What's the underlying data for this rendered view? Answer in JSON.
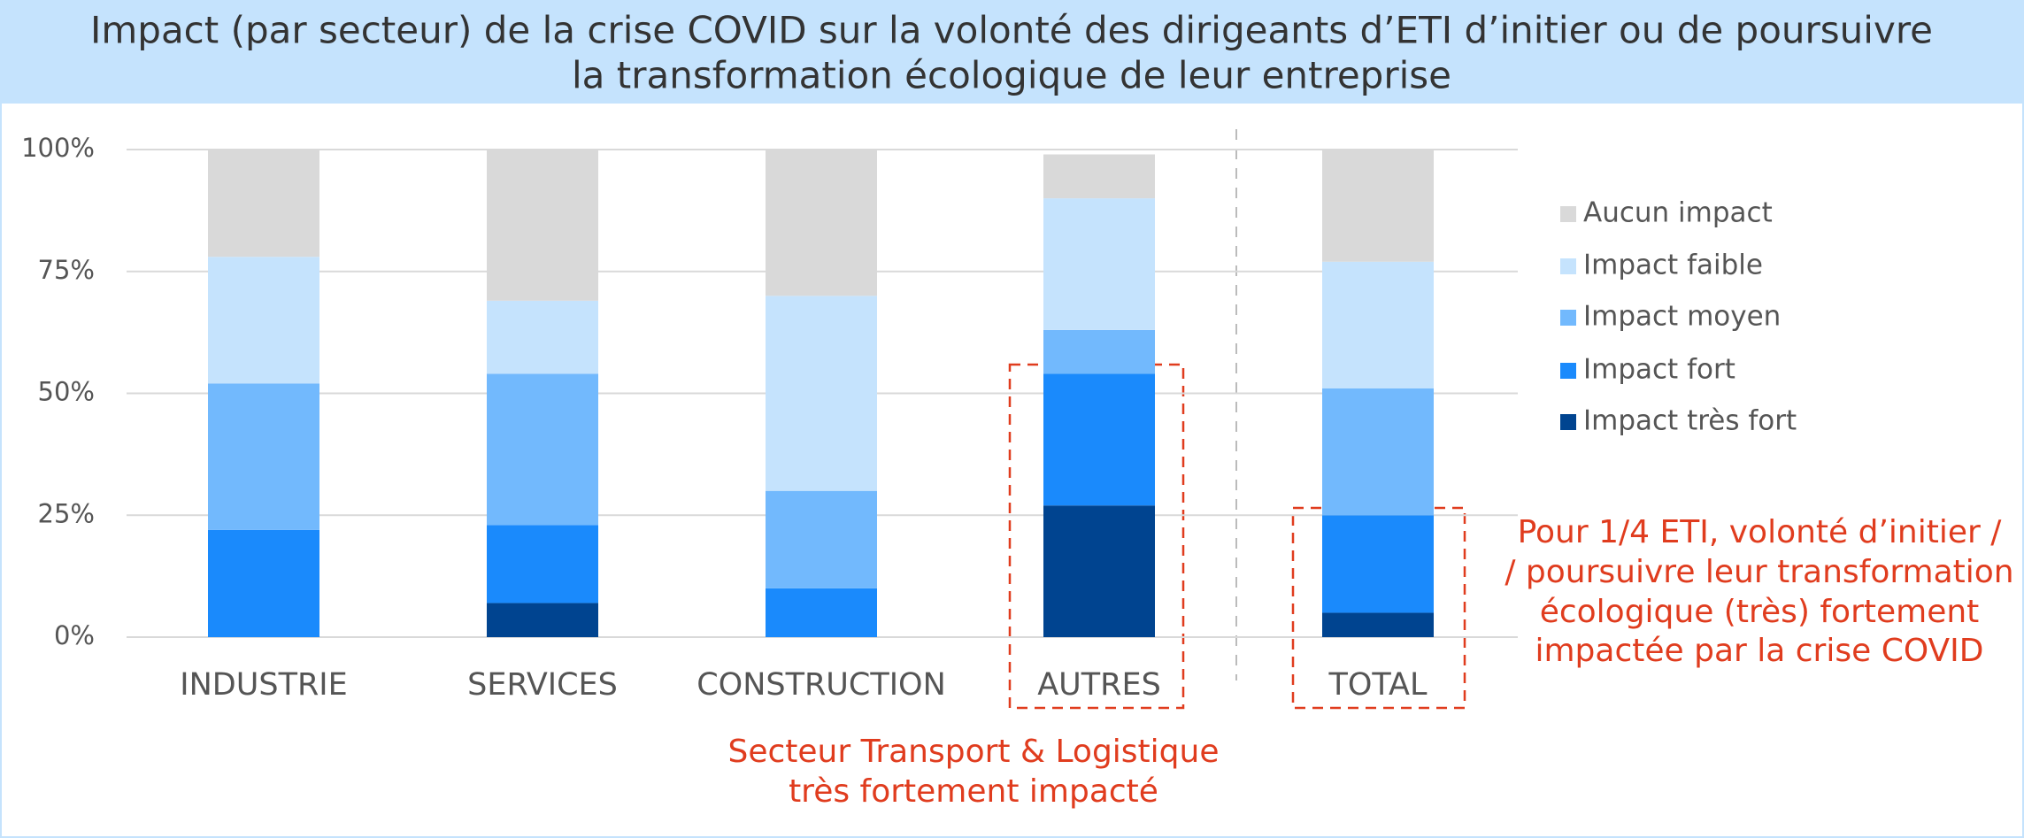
{
  "chart_data": {
    "type": "stacked_bar",
    "title": [
      "Impact (par secteur) de la crise COVID sur la volonté des dirigeants d’ETI d’initier ou de poursuivre",
      "la transformation écologique de leur entreprise"
    ],
    "categories": [
      "INDUSTRIE",
      "SERVICES",
      "CONSTRUCTION",
      "AUTRES",
      "TOTAL"
    ],
    "series": [
      {
        "name": "Impact très fort",
        "color": "#004490",
        "values": [
          0,
          7,
          0,
          27,
          5
        ]
      },
      {
        "name": "Impact fort",
        "color": "#1a8afc",
        "values": [
          22,
          16,
          10,
          27,
          20
        ]
      },
      {
        "name": "Impact moyen",
        "color": "#72b9fd",
        "values": [
          30,
          31,
          20,
          9,
          26
        ]
      },
      {
        "name": "Impact faible",
        "color": "#c5e3fd",
        "values": [
          26,
          15,
          40,
          27,
          26
        ]
      },
      {
        "name": "Aucun impact",
        "color": "#d9d9d9",
        "values": [
          22,
          31,
          30,
          9,
          23
        ]
      }
    ],
    "ylim": [
      0,
      100
    ],
    "yticks": [
      {
        "value": 0,
        "label": "0%"
      },
      {
        "value": 25,
        "label": "25%"
      },
      {
        "value": 50,
        "label": "50%"
      },
      {
        "value": 75,
        "label": "75%"
      },
      {
        "value": 100,
        "label": "100%"
      }
    ],
    "grid": true,
    "legend": "right",
    "annotations": [
      {
        "lines": [
          "Secteur Transport & Logistique",
          "très fortement impacté"
        ],
        "color": "#e03c1e"
      },
      {
        "lines": [
          "Pour 1/4 ETI, volonté d’initier /",
          "/ poursuivre leur transformation",
          "écologique (très) fortement",
          "impactée par la crise COVID"
        ],
        "color": "#e03c1e"
      }
    ]
  }
}
